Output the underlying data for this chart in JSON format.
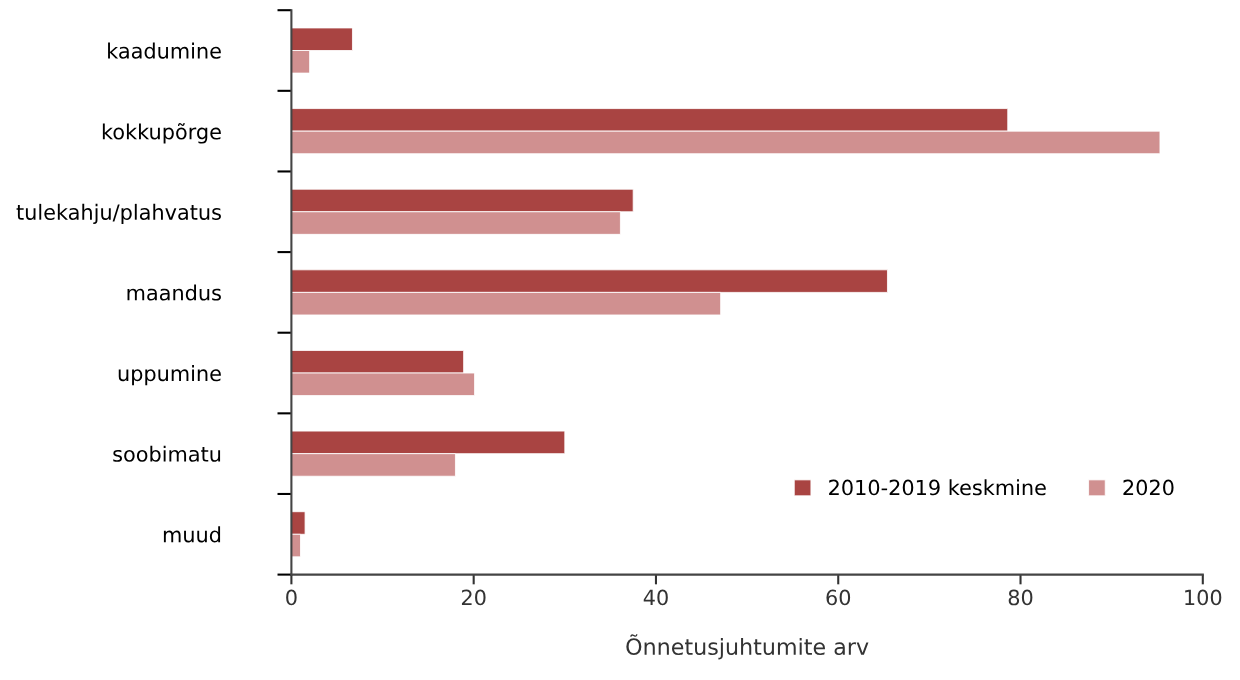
{
  "chart_data": {
    "type": "bar",
    "orientation": "horizontal",
    "xlabel": "Õnnetusjuhtumite arv",
    "categories": [
      "kaadumine",
      "kokkupõrge",
      "tulekahju/plahvatus",
      "maandus",
      "uppumine",
      "soobimatu",
      "muud"
    ],
    "series": [
      {
        "name": "2010-2019 keskmine",
        "color": "#a94442",
        "values": [
          6.7,
          78.6,
          37.5,
          65.4,
          18.9,
          30.0,
          1.5
        ]
      },
      {
        "name": "2020",
        "color": "#d09090",
        "values": [
          2.0,
          95.3,
          36.1,
          47.1,
          20.1,
          18.0,
          1.0
        ]
      }
    ],
    "xlim": [
      0,
      100
    ],
    "xticks": [
      0,
      20,
      40,
      60,
      80,
      100
    ],
    "grid": false,
    "legend": "bottom right"
  }
}
